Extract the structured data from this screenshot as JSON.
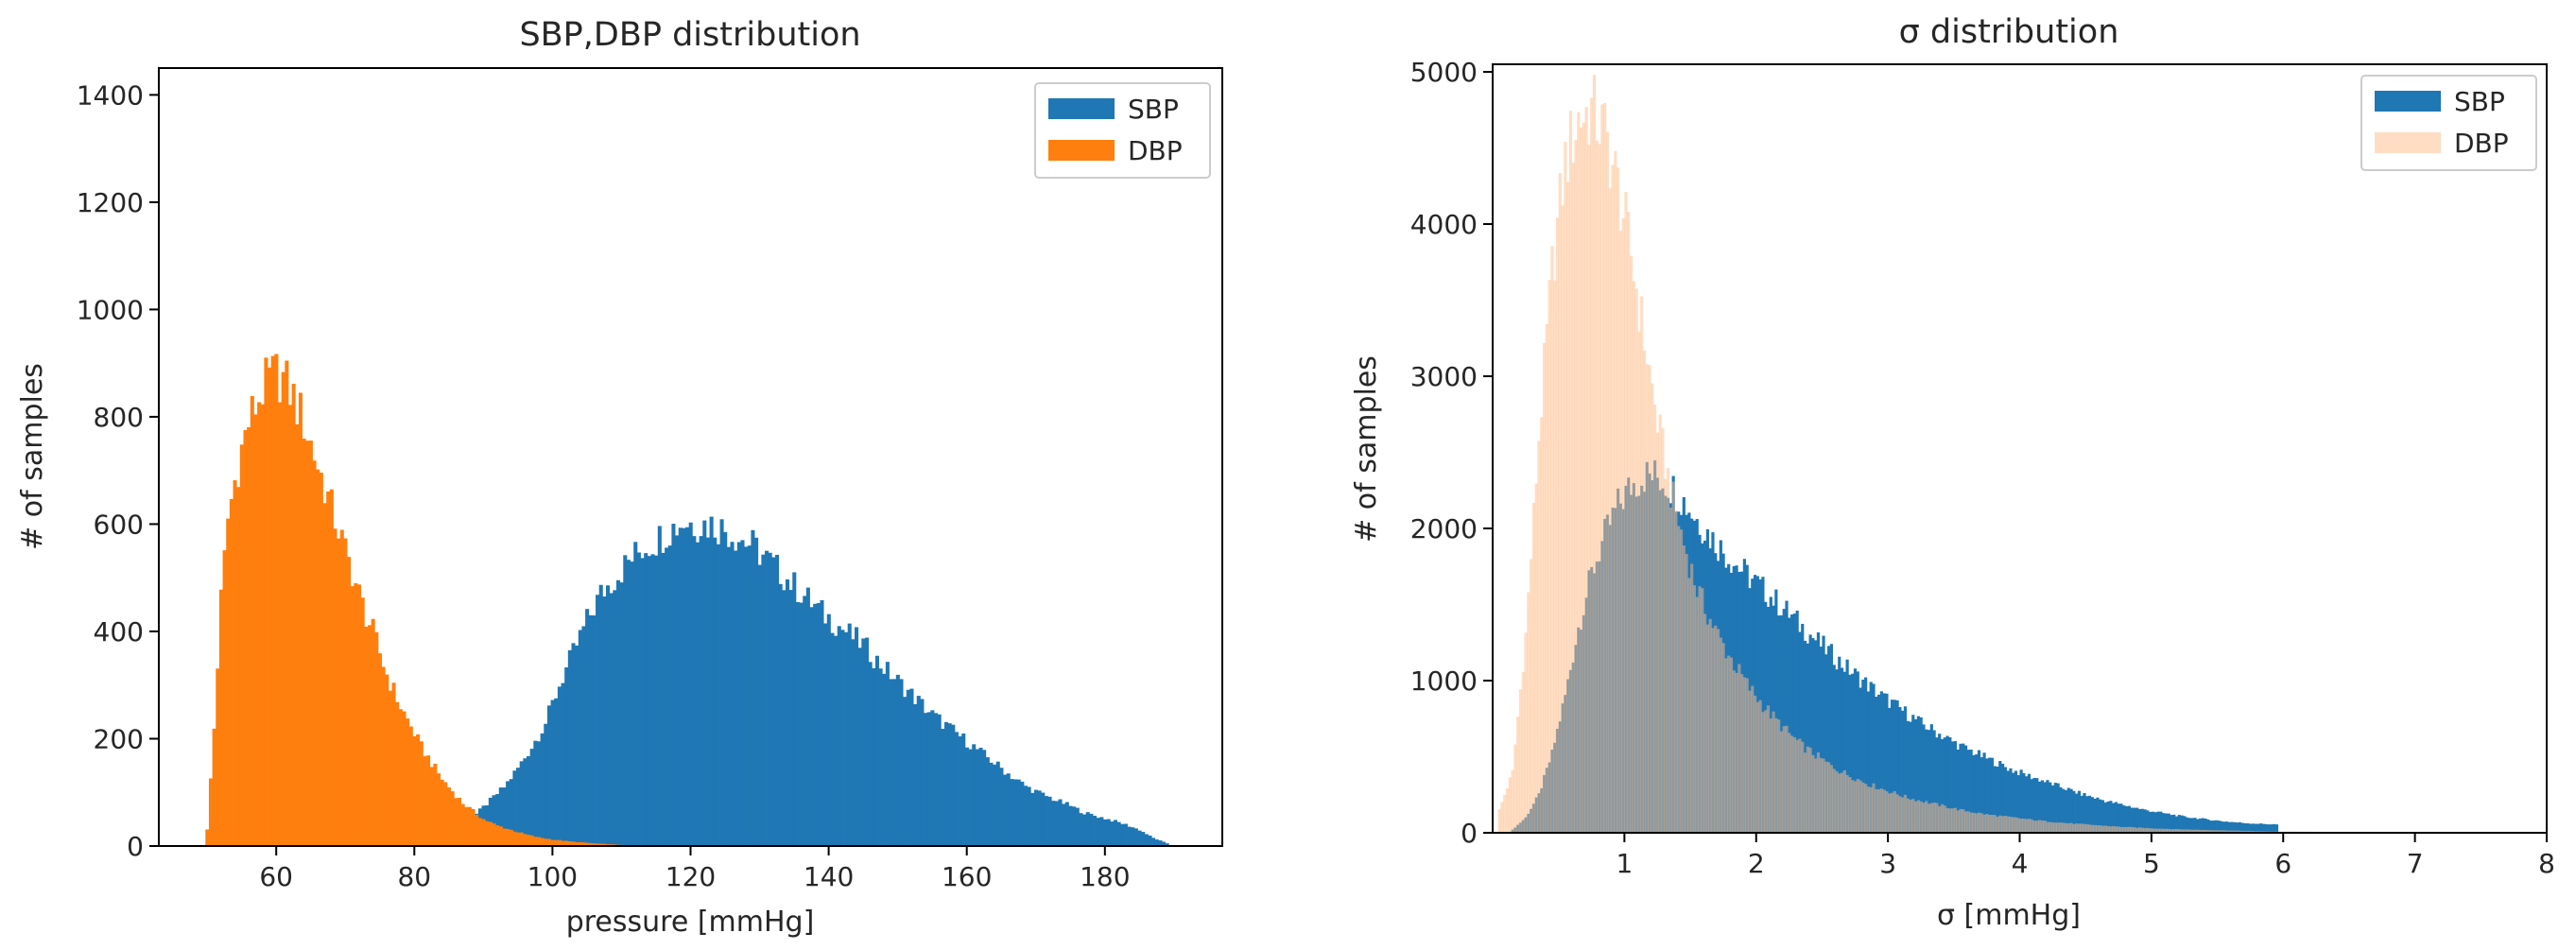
{
  "chart_data": [
    {
      "type": "histogram",
      "title": "SBP,DBP distribution",
      "xlabel": "pressure [mmHg]",
      "ylabel": "# of samples",
      "xlim": [
        43,
        197
      ],
      "ylim": [
        0,
        1450
      ],
      "xticks": [
        60,
        80,
        100,
        120,
        140,
        160,
        180
      ],
      "yticks": [
        0,
        200,
        400,
        600,
        800,
        1000,
        1200,
        1400
      ],
      "legend": {
        "position": "upper-right",
        "entries": [
          "SBP",
          "DBP"
        ]
      },
      "series": [
        {
          "name": "SBP",
          "color": "#1f77b4",
          "opacity": 1,
          "bin_width": 0.5,
          "x": [
            85,
            87,
            89,
            91,
            93,
            95,
            97,
            99,
            101,
            103,
            105,
            107,
            109,
            111,
            113,
            115,
            117,
            119,
            121,
            123,
            125,
            127,
            129,
            131,
            133,
            135,
            137,
            139,
            141,
            143,
            145,
            147,
            149,
            151,
            153,
            155,
            157,
            159,
            161,
            163,
            165,
            167,
            169,
            171,
            173,
            175,
            177,
            179,
            181,
            183,
            185,
            187,
            189
          ],
          "values": [
            20,
            40,
            60,
            85,
            110,
            145,
            185,
            230,
            300,
            360,
            420,
            470,
            500,
            530,
            555,
            570,
            590,
            605,
            600,
            600,
            590,
            575,
            560,
            535,
            510,
            485,
            460,
            435,
            415,
            395,
            375,
            345,
            320,
            295,
            270,
            245,
            225,
            205,
            185,
            165,
            145,
            125,
            108,
            96,
            85,
            75,
            62,
            55,
            48,
            40,
            30,
            15,
            5
          ]
        },
        {
          "name": "DBP",
          "color": "#ff7f0e",
          "opacity": 1,
          "bin_width": 0.5,
          "x": [
            50,
            51,
            52,
            53,
            54,
            55,
            56,
            57,
            58,
            59,
            60,
            61,
            62,
            63,
            64,
            65,
            66,
            67,
            68,
            69,
            70,
            71,
            72,
            73,
            74,
            75,
            76,
            77,
            78,
            79,
            80,
            81,
            82,
            83,
            84,
            85,
            86,
            87,
            88,
            89,
            90,
            92,
            94,
            96,
            98,
            100,
            103,
            106,
            110
          ],
          "values": [
            30,
            220,
            460,
            610,
            680,
            740,
            790,
            820,
            850,
            870,
            880,
            870,
            850,
            820,
            790,
            750,
            710,
            670,
            630,
            590,
            550,
            510,
            470,
            430,
            400,
            360,
            320,
            290,
            260,
            235,
            210,
            185,
            165,
            145,
            125,
            110,
            95,
            80,
            70,
            60,
            50,
            38,
            30,
            22,
            16,
            12,
            8,
            5,
            2
          ]
        }
      ]
    },
    {
      "type": "histogram",
      "title": "σ distribution",
      "xlabel": "σ [mmHg]",
      "ylabel": "# of samples",
      "xlim": [
        0,
        8
      ],
      "ylim": [
        0,
        5050
      ],
      "xticks": [
        1,
        2,
        3,
        4,
        5,
        6,
        7,
        8
      ],
      "yticks": [
        0,
        1000,
        2000,
        3000,
        4000,
        5000
      ],
      "legend": {
        "position": "upper-right",
        "entries": [
          "SBP",
          "DBP"
        ]
      },
      "series": [
        {
          "name": "SBP",
          "color": "#1f77b4",
          "opacity": 1,
          "bin_width": 0.02,
          "x": [
            0.15,
            0.25,
            0.35,
            0.45,
            0.55,
            0.65,
            0.75,
            0.85,
            0.95,
            1.05,
            1.15,
            1.25,
            1.35,
            1.45,
            1.55,
            1.65,
            1.75,
            1.85,
            1.95,
            2.05,
            2.15,
            2.25,
            2.35,
            2.45,
            2.55,
            2.65,
            2.75,
            2.85,
            2.95,
            3.05,
            3.15,
            3.25,
            3.35,
            3.45,
            3.55,
            3.65,
            3.75,
            3.85,
            3.95,
            4.05,
            4.15,
            4.25,
            4.35,
            4.45,
            4.55,
            4.65,
            4.75,
            4.85,
            4.95,
            5.05,
            5.15,
            5.25,
            5.35,
            5.45,
            5.55,
            5.65,
            5.75,
            5.85,
            5.95
          ],
          "values": [
            20,
            100,
            250,
            520,
            900,
            1350,
            1700,
            1950,
            2150,
            2280,
            2350,
            2340,
            2280,
            2180,
            2060,
            1950,
            1850,
            1760,
            1680,
            1600,
            1520,
            1440,
            1350,
            1270,
            1190,
            1110,
            1040,
            970,
            900,
            840,
            780,
            720,
            670,
            620,
            570,
            530,
            490,
            450,
            410,
            380,
            350,
            320,
            290,
            260,
            235,
            210,
            190,
            170,
            150,
            135,
            120,
            105,
            95,
            85,
            75,
            68,
            62,
            58,
            55
          ]
        },
        {
          "name": "DBP",
          "color": "#ffbb88",
          "opacity": 0.5,
          "bin_width": 0.02,
          "x": [
            0.05,
            0.15,
            0.25,
            0.35,
            0.45,
            0.55,
            0.65,
            0.75,
            0.85,
            0.95,
            1.05,
            1.15,
            1.25,
            1.35,
            1.45,
            1.55,
            1.65,
            1.75,
            1.85,
            1.95,
            2.05,
            2.15,
            2.25,
            2.35,
            2.45,
            2.55,
            2.65,
            2.75,
            2.85,
            2.95,
            3.05,
            3.15,
            3.25,
            3.35,
            3.45,
            3.55,
            3.65,
            3.75,
            3.85,
            3.95,
            4.05,
            4.15,
            4.25,
            4.35,
            4.45,
            4.55,
            4.65,
            4.75,
            4.85,
            4.95,
            5.05,
            5.15,
            5.25,
            5.35,
            5.45,
            5.55,
            5.65,
            5.75,
            5.85,
            5.95,
            6.1,
            6.3,
            6.5,
            6.7,
            6.9,
            7.1,
            7.3
          ],
          "values": [
            150,
            400,
            1300,
            2600,
            3700,
            4400,
            4700,
            4750,
            4600,
            4250,
            3800,
            3250,
            2700,
            2250,
            1900,
            1600,
            1400,
            1230,
            1080,
            950,
            840,
            740,
            650,
            570,
            510,
            450,
            400,
            360,
            320,
            290,
            260,
            230,
            210,
            190,
            170,
            150,
            135,
            120,
            110,
            100,
            90,
            80,
            72,
            64,
            58,
            52,
            46,
            40,
            36,
            32,
            28,
            25,
            22,
            20,
            18,
            16,
            14,
            12,
            10,
            9,
            8,
            6,
            5,
            4,
            3,
            2,
            1
          ]
        }
      ]
    }
  ]
}
